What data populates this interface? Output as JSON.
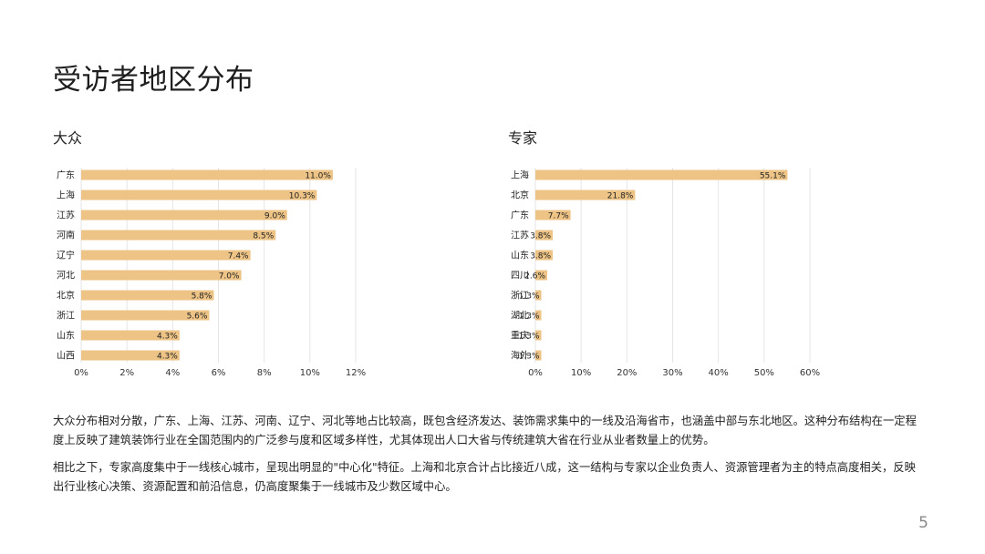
{
  "page": {
    "title": "受访者地区分布",
    "page_number": "5",
    "paragraphs": [
      "大众分布相对分散，广东、上海、江苏、河南、辽宁、河北等地占比较高，既包含经济发达、装饰需求集中的一线及沿海省市，也涵盖中部与东北地区。这种分布结构在一定程度上反映了建筑装饰行业在全国范围内的广泛参与度和区域多样性，尤其体现出人口大省与传统建筑大省在行业从业者数量上的优势。",
      "相比之下，专家高度集中于一线核心城市，呈现出明显的\"中心化\"特征。上海和北京合计占比接近八成，这一结构与专家以企业负责人、资源管理者为主的特点高度相关，反映出行业核心决策、资源配置和前沿信息，仍高度聚集于一线城市及少数区域中心。"
    ]
  },
  "colors": {
    "bar": "#EDC486",
    "grid": "#E6E6E6",
    "text": "#222222"
  },
  "chart_data": [
    {
      "type": "bar",
      "orientation": "horizontal",
      "title": "大众",
      "categories": [
        "广东",
        "上海",
        "江苏",
        "河南",
        "辽宁",
        "河北",
        "北京",
        "浙江",
        "山东",
        "山西"
      ],
      "values": [
        11.0,
        10.3,
        9.0,
        8.5,
        7.4,
        7.0,
        5.8,
        5.6,
        4.3,
        4.3
      ],
      "value_labels": [
        "11.0%",
        "10.3%",
        "9.0%",
        "8.5%",
        "7.4%",
        "7.0%",
        "5.8%",
        "5.6%",
        "4.3%",
        "4.3%"
      ],
      "xlim": [
        0,
        12
      ],
      "xticks": [
        0,
        2,
        4,
        6,
        8,
        10,
        12
      ],
      "xtick_labels": [
        "0%",
        "2%",
        "4%",
        "6%",
        "8%",
        "10%",
        "12%"
      ],
      "label_position": "inside-end",
      "grid": "vertical"
    },
    {
      "type": "bar",
      "orientation": "horizontal",
      "title": "专家",
      "categories": [
        "上海",
        "北京",
        "广东",
        "江苏",
        "山东",
        "四川",
        "浙江",
        "湖北",
        "重庆",
        "海外"
      ],
      "values": [
        55.1,
        21.8,
        7.7,
        3.8,
        3.8,
        2.6,
        1.3,
        1.3,
        1.3,
        1.3
      ],
      "value_labels": [
        "55.1%",
        "21.8%",
        "7.7%",
        "3.8%",
        "3.8%",
        "2.6%",
        "1.3%",
        "1.3%",
        "1.3%",
        "1.3%"
      ],
      "xlim": [
        0,
        60
      ],
      "xticks": [
        0,
        10,
        20,
        30,
        40,
        50,
        60
      ],
      "xtick_labels": [
        "0%",
        "10%",
        "20%",
        "30%",
        "40%",
        "50%",
        "60%"
      ],
      "label_position": "inside-end",
      "grid": "vertical"
    }
  ]
}
